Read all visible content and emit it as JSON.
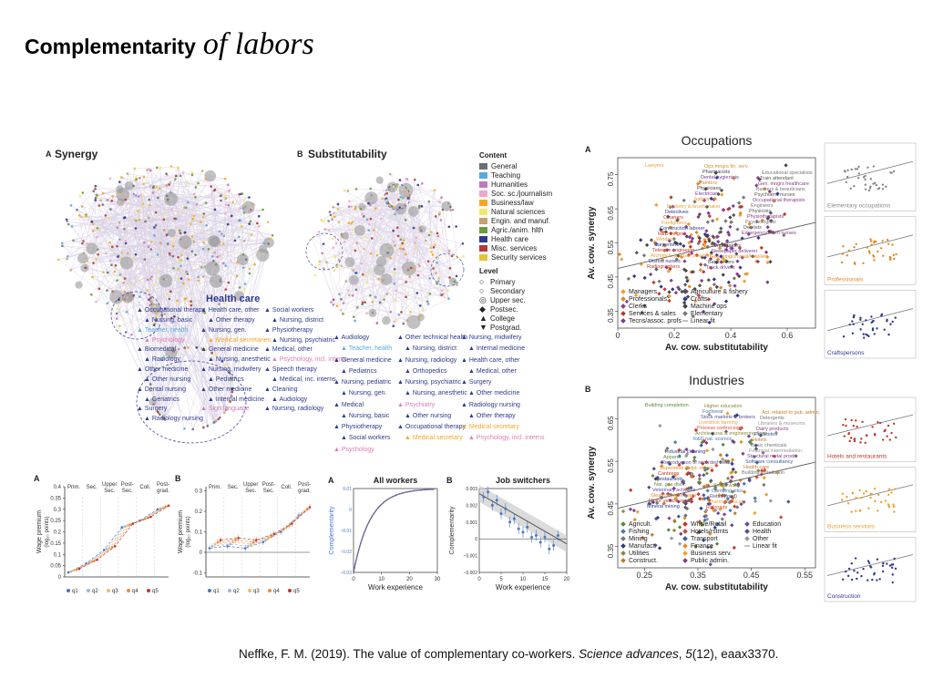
{
  "slide": {
    "title_bold": "Complementarity",
    "title_script": "of labors",
    "citation": {
      "prefix": "Neffke, F. M. (2019). The value of complementary co-workers. ",
      "journal": "Science advances",
      "sep": ", ",
      "volume": "5",
      "issue_rest": "(12), eaax3370."
    }
  },
  "networks": {
    "a_label": "A",
    "a_title": "Synergy",
    "b_label": "B",
    "b_title": "Substitutability",
    "health_care_title": "Health care",
    "synergy_nodes": [
      "Occupational therapy",
      "Health care, other",
      "Social workers",
      "Nursing, basic",
      "Other therapy",
      "Nursing, district",
      "Teacher, health",
      "Nursing, gen.",
      "Physiotherapy",
      "Psychology",
      "Medical secretaries",
      "Nursing, psychiatric",
      "Biomedical",
      "General medicine",
      "Medical, other",
      "Radiology",
      "Nursing, anesthetic",
      "Psychology, incl. interns",
      "Other medicine",
      "Nursing, midwifery",
      "Speech therapy",
      "Other nursing",
      "Pediatrics",
      "Medical, inc. interns",
      "Dental nursing",
      "Other medicine",
      "Cleaning",
      "Geriatrics",
      "Internal medicine",
      "Audiology",
      "Surgery",
      "Sign language",
      "Nursing, radiology",
      "Radiology nursing"
    ],
    "subst_nodes": [
      "Audiology",
      "Other technical health",
      "Nursing, midwifery",
      "Teacher, health",
      "Nursing, district",
      "Internal medicine",
      "General medicine",
      "Nursing, radiology",
      "Health care, other",
      "Pediatrics",
      "Orthopedics",
      "Medical, other",
      "Nursing, pediatric",
      "Nursing, psychiatric",
      "Surgery",
      "Nursing, gen.",
      "Nursing, anesthetic",
      "Other medicine",
      "Medical",
      "Psychiatry",
      "Radiology nursing",
      "Nursing, basic",
      "Other nursing",
      "Other therapy",
      "Physiotherapy",
      "Occupational therapy",
      "Medical secretary",
      "Social workers",
      "Medical secretary",
      "Psychology, incl. interns",
      "Psychology"
    ],
    "content_title": "Content",
    "content_items": [
      {
        "label": "General",
        "color": "#6e6e6e"
      },
      {
        "label": "Teaching",
        "color": "#5aa9dc"
      },
      {
        "label": "Humanities",
        "color": "#c07ab7"
      },
      {
        "label": "Soc. sc./journalism",
        "color": "#f0a6c8"
      },
      {
        "label": "Business/law",
        "color": "#f5a623"
      },
      {
        "label": "Natural sciences",
        "color": "#f2e66b"
      },
      {
        "label": "Engin. and manuf.",
        "color": "#c8a070"
      },
      {
        "label": "Agric./anim. hlth",
        "color": "#6a9a3a"
      },
      {
        "label": "Health care",
        "color": "#2e3a8c"
      },
      {
        "label": "Misc. services",
        "color": "#b23a3a"
      },
      {
        "label": "Security services",
        "color": "#e2c23a"
      }
    ],
    "level_title": "Level",
    "level_items": [
      "Primary",
      "Secondary",
      "Upper sec.",
      "Postsec.",
      "College",
      "Postgrad."
    ]
  },
  "wage_charts": {
    "a_label": "A",
    "b_label": "B",
    "ylabel": "Wage premium",
    "ylabel_sub": "(log₁₀ points)",
    "levels": [
      "Prim.",
      "Sec.",
      "Upper\nSec.",
      "Post-\nSec.",
      "Coll.",
      "Post-\ngrad."
    ],
    "quintiles": [
      "q1",
      "q2",
      "q3",
      "q4",
      "q5"
    ],
    "quintile_colors": [
      "#4a78c2",
      "#9fb7d9",
      "#f2b870",
      "#f08a3a",
      "#c0392b"
    ],
    "a_yticks": [
      "0",
      "0.05",
      "0.1",
      "0.15",
      "0.2",
      "0.25",
      "0.3",
      "0.35",
      "0.4"
    ],
    "b_yticks": [
      "-0.1",
      "0",
      "0.1",
      "0.2",
      "0.3"
    ]
  },
  "experience_charts": {
    "a_label": "A",
    "a_title": "All workers",
    "b_label": "B",
    "b_title": "Job switchers",
    "xlabel": "Work experience",
    "a_ylabel": "Complementarity",
    "a_ylabel2": "wage residual",
    "b_ylabel": "Complementarity",
    "a_xticks": [
      "0",
      "10",
      "20",
      "30"
    ],
    "a_yticks": [
      "−0.03",
      "−0.02",
      "−0.01",
      "0",
      "0.01"
    ],
    "a_yticks2": [
      "−0.3",
      "−0.2",
      "−0.1",
      "0"
    ],
    "b_xticks": [
      "0",
      "5",
      "10",
      "15",
      "20"
    ],
    "b_yticks": [
      "−0.002",
      "−0.001",
      "0",
      "0.001",
      "0.002",
      "0.003"
    ]
  },
  "occupations": {
    "label": "A",
    "title": "Occupations",
    "xlabel": "Av. cow. substitutability",
    "ylabel": "Av. cow. synergy",
    "xticks": [
      "0",
      "0.2",
      "0.4",
      "0.6"
    ],
    "yticks": [
      "0.35",
      "0.45",
      "0.55",
      "0.65",
      "0.75"
    ],
    "point_labels": [
      "Lawyers",
      "Judges",
      "Emergency room nurses",
      "Radiographers",
      "Electrician",
      "Dentists",
      "District nurses",
      "Physicians",
      "Psychologists",
      "Architects & urban planners",
      "Painters",
      "Physiotherapists",
      "Telecom engineers",
      "Dental hygienists",
      "Physicists",
      "Carpenters",
      "Pharmacists",
      "Engineers",
      "Welders",
      "Ops mngrs fin. serv.",
      "Occupational therapists",
      "R&D mngrs",
      "Truck drivers",
      "Psychiatric nurses",
      "Construction laborer",
      "Bank tellers",
      "Barbers & beauticians",
      "Firefighters",
      "Gen. mngrs retail/hotel/etc.",
      "Gen. mngrs healthcare",
      "Cleaners",
      "Newspaper deliverer",
      "Train attendant",
      "Detectives",
      "Undertakers",
      "Educational specialists",
      "Basketry & brush maker"
    ],
    "legend": [
      {
        "label": "Managers",
        "color": "#f0a030",
        "marker": "diamond"
      },
      {
        "label": "Professionals",
        "color": "#e08a2a",
        "marker": "diamond"
      },
      {
        "label": "Clerks",
        "color": "#8e3b8c",
        "marker": "diamond"
      },
      {
        "label": "Services & sales",
        "color": "#c0392b",
        "marker": "square"
      },
      {
        "label": "Tecns/assoc. profs",
        "color": "#7a3a9a",
        "marker": "square"
      },
      {
        "label": "Agriculture & fishery",
        "color": "#555555",
        "marker": "dot"
      },
      {
        "label": "Crafts",
        "color": "#2e3a8c",
        "marker": "diamond"
      },
      {
        "label": "Machine ops",
        "color": "#444444",
        "marker": "triangle"
      },
      {
        "label": "Elementary",
        "color": "#777777",
        "marker": "cross"
      },
      {
        "label": "Linear fit",
        "color": "#888888",
        "marker": "line"
      }
    ],
    "facets": [
      "Elementary occupations",
      "Professionals",
      "Craftspersons"
    ]
  },
  "industries": {
    "label": "B",
    "title": "Industries",
    "xlabel": "Av. cow. substitutability",
    "ylabel": "Av. cow. synergy",
    "xticks": [
      "0.25",
      "0.35",
      "0.45",
      "0.55"
    ],
    "yticks": [
      "0.35",
      "0.45",
      "0.55",
      "0.65"
    ],
    "point_labels": [
      "Building completion",
      "R&D nat. science",
      "Building installation",
      "Mineral mining",
      "Architectural & engineering firms",
      "Health care",
      "Motor vehicle repair",
      "Process control eqpt",
      "Software consultancy",
      "Steam and hot water",
      "Livestock farming",
      "Structural metal prods",
      "Veterinary activities",
      "Stock markets & brokers",
      "Financial intermediation",
      "Nat. gas distr.",
      "Footwear",
      "Basic chemicals",
      "Restaurants",
      "Higher education",
      "Hotels",
      "Canteens",
      "Railroads",
      "Pesticides",
      "Supermkts & dpt. stores",
      "Pharmaceuticals",
      "Dairy products",
      "Reproduction of recorded media",
      "Retail (food)",
      "Libraries & museums",
      "Apparel",
      "Camping sites",
      "Detergents",
      "Industrial cleaning",
      "Social work",
      "Act. related to pub. admin."
    ],
    "legend": [
      {
        "label": "Agricult.",
        "color": "#5a8a3a"
      },
      {
        "label": "Fishing",
        "color": "#4a7ab0"
      },
      {
        "label": "Mining",
        "color": "#777777"
      },
      {
        "label": "Manufact.",
        "color": "#2e3a8c"
      },
      {
        "label": "Utilities",
        "color": "#8a8a3a"
      },
      {
        "label": "Construct.",
        "color": "#c77a2a"
      },
      {
        "label": "Whsle/Retail",
        "color": "#c0392b"
      },
      {
        "label": "Hotels/rstrnts",
        "color": "#d04a3a"
      },
      {
        "label": "Transport",
        "color": "#3a5a9a"
      },
      {
        "label": "Finance",
        "color": "#e08a2a"
      },
      {
        "label": "Business serv.",
        "color": "#f0a030"
      },
      {
        "label": "Public admin.",
        "color": "#8e3b8c"
      },
      {
        "label": "Education",
        "color": "#6a4aa0"
      },
      {
        "label": "Health",
        "color": "#5a4a8a"
      },
      {
        "label": "Other",
        "color": "#999999"
      },
      {
        "label": "Linear fit",
        "color": "#888888"
      }
    ],
    "facets": [
      "Hotels and restaurants",
      "Business services",
      "Construction"
    ]
  }
}
